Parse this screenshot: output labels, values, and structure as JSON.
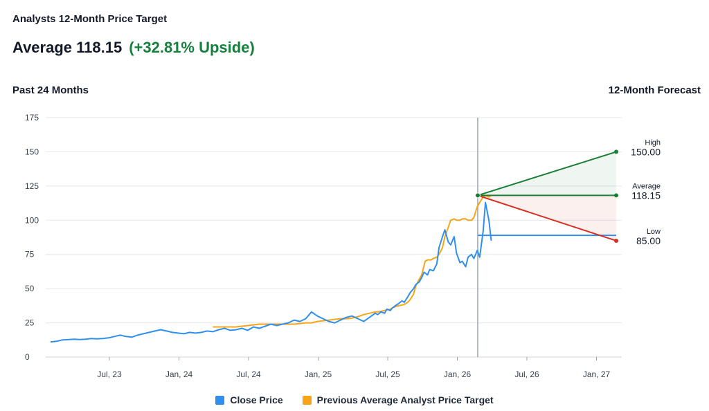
{
  "header": {
    "title": "Analysts 12-Month Price Target",
    "average_text": "Average 118.15",
    "upside_text": "(+32.81% Upside)",
    "past_label": "Past 24 Months",
    "forecast_label": "12-Month Forecast"
  },
  "colors": {
    "close": "#2e8fee",
    "target": "#f7a516",
    "high": "#1a7f37",
    "average": "#1a7f37",
    "low": "#d92d20",
    "upside": "#15803d"
  },
  "chart_data": {
    "type": "line",
    "ylim": [
      0,
      175
    ],
    "yticks": [
      "0",
      "25",
      "50",
      "75",
      "100",
      "125",
      "150",
      "175"
    ],
    "xtick_labels": [
      "Jul, 23",
      "Jan, 24",
      "Jul, 24",
      "Jan, 25",
      "Jul, 25",
      "Jan, 26",
      "Jul, 26",
      "Jan, 27"
    ],
    "grid": true,
    "legend_position": "bottom",
    "series": [
      {
        "name": "Close Price",
        "x": [
          0.0,
          0.5,
          1.0,
          1.5,
          2.0,
          2.5,
          3.0,
          3.5,
          4.0,
          4.5,
          5.0,
          5.5,
          6.0,
          6.5,
          7.0,
          7.5,
          8.0,
          8.5,
          9.0,
          9.5,
          10.0,
          10.5,
          11.0,
          11.5,
          12.0,
          12.5,
          13.0,
          13.5,
          14.0,
          14.5,
          15.0,
          15.5,
          16.0,
          16.5,
          17.0,
          17.5,
          18.0,
          18.5,
          19.0,
          19.5,
          20.0,
          20.5,
          21.0,
          21.5,
          22.0,
          22.5,
          23.0,
          23.5,
          24.0,
          24.5,
          25.0,
          25.5,
          26.0,
          26.5,
          27.0,
          27.5,
          28.0,
          28.2,
          28.5,
          28.8,
          29.0,
          29.3,
          29.5,
          29.8,
          30.0,
          30.3,
          30.5,
          30.8,
          31.0,
          31.3,
          31.5,
          31.8,
          32.0,
          32.2,
          32.5,
          32.7,
          33.0,
          33.3,
          33.5,
          33.8,
          34.0,
          34.3,
          34.5,
          34.8,
          35.0,
          35.3,
          35.5,
          35.8,
          36.0,
          36.3,
          36.5,
          36.8,
          37.0,
          37.3,
          37.5,
          37.8,
          38.0
        ],
        "values": [
          11,
          11.5,
          12.5,
          12.7,
          13,
          12.8,
          13,
          13.5,
          13.3,
          13.5,
          14,
          15,
          16,
          15,
          14.5,
          16,
          17,
          18,
          19,
          20,
          19,
          18,
          17.5,
          17,
          18,
          17.5,
          18,
          19,
          18.5,
          20,
          21,
          19.5,
          20,
          21,
          19.5,
          22,
          21,
          22.5,
          24,
          23,
          24,
          25,
          27,
          26,
          28,
          33,
          30,
          28,
          26,
          25,
          27,
          29,
          30,
          28,
          26,
          29,
          32,
          31,
          33,
          32,
          35,
          34,
          36,
          38,
          39,
          41,
          40,
          44,
          47,
          50,
          53,
          55,
          58,
          62,
          60,
          64,
          63,
          68,
          80,
          88,
          93,
          84,
          82,
          88,
          76,
          69,
          70,
          66,
          73,
          75,
          72,
          78,
          73,
          92,
          113,
          100,
          85
        ]
      },
      {
        "name": "Previous Average Analyst Price Target",
        "x": [
          14.0,
          14.5,
          15.0,
          15.5,
          16.0,
          16.5,
          17.0,
          17.5,
          18.0,
          18.5,
          19.0,
          19.5,
          20.0,
          20.5,
          21.0,
          21.5,
          22.0,
          22.5,
          23.0,
          23.5,
          24.0,
          24.5,
          25.0,
          25.5,
          26.0,
          26.5,
          27.0,
          27.5,
          28.0,
          28.2,
          28.5,
          28.8,
          29.0,
          29.3,
          29.5,
          29.8,
          30.0,
          30.3,
          30.5,
          30.8,
          31.0,
          31.3,
          31.5,
          31.8,
          32.0,
          32.3,
          32.5,
          32.8,
          33.0,
          33.3,
          33.5,
          33.8,
          34.0,
          34.3,
          34.5,
          34.8,
          35.0,
          35.3,
          35.5,
          35.8,
          36.0,
          36.3,
          36.5,
          36.8,
          37.0,
          37.3,
          37.5,
          37.8,
          38.0
        ],
        "values": [
          22,
          22,
          22,
          22,
          22,
          22.5,
          23,
          23.5,
          24,
          24,
          24,
          24,
          24,
          24,
          24,
          24.5,
          25,
          25,
          26,
          26.5,
          27,
          27.5,
          28,
          28,
          28.5,
          29.5,
          31,
          32,
          33,
          33,
          33.5,
          34,
          34.5,
          35,
          36,
          37,
          37.5,
          38,
          38.5,
          40,
          42,
          46,
          52,
          57,
          60,
          70,
          71,
          71,
          72,
          73,
          75,
          80,
          88,
          95,
          100,
          101,
          100,
          100,
          101,
          101,
          100,
          100,
          102,
          110,
          113,
          117,
          118,
          117,
          118.15
        ]
      }
    ],
    "forecast": {
      "start_value": 118.15,
      "close_level": 88.96,
      "high": {
        "label": "High",
        "value_text": "150.00",
        "value": 150
      },
      "average": {
        "label": "Average",
        "value_text": "118.15",
        "value": 118.15
      },
      "low": {
        "label": "Low",
        "value_text": "85.00",
        "value": 85
      }
    }
  },
  "legend": {
    "close_label": "Close Price",
    "target_label": "Previous Average Analyst Price Target"
  }
}
